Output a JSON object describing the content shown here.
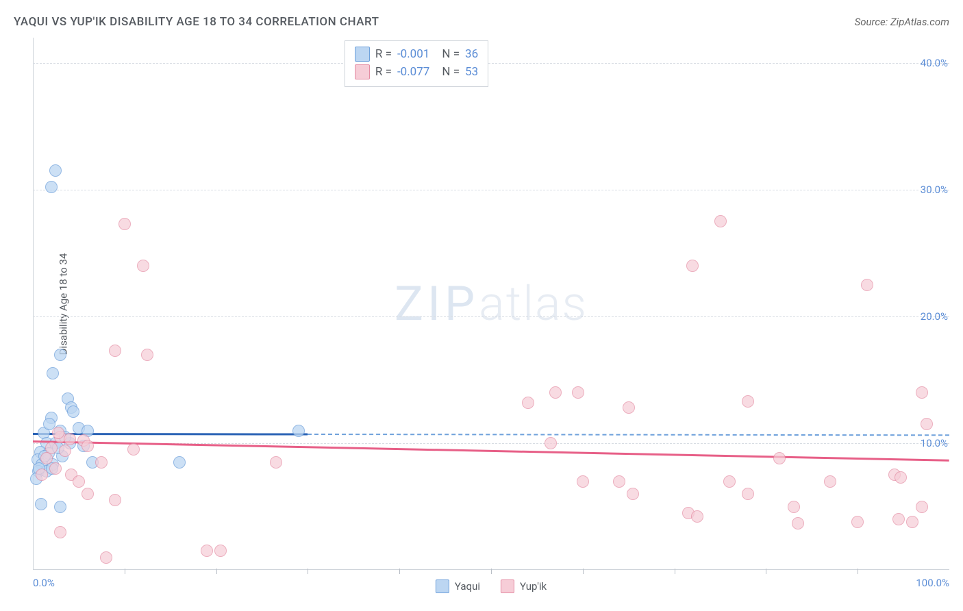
{
  "header": {
    "title": "YAQUI VS YUP'IK DISABILITY AGE 18 TO 34 CORRELATION CHART",
    "source": "Source: ZipAtlas.com"
  },
  "chart": {
    "type": "scatter",
    "ylabel": "Disability Age 18 to 34",
    "watermark_a": "ZIP",
    "watermark_b": "atlas",
    "background_color": "#ffffff",
    "grid_color": "#d8dde3",
    "axis_color": "#cfd4da",
    "tick_label_color": "#5b8dd6",
    "xlim": [
      0,
      100
    ],
    "ylim": [
      0,
      42
    ],
    "yticks": [
      {
        "v": 10,
        "label": "10.0%"
      },
      {
        "v": 20,
        "label": "20.0%"
      },
      {
        "v": 30,
        "label": "30.0%"
      },
      {
        "v": 40,
        "label": "40.0%"
      }
    ],
    "xticks_major": [
      {
        "v": 0,
        "label": "0.0%"
      },
      {
        "v": 100,
        "label": "100.0%"
      }
    ],
    "xticks_minor": [
      10,
      20,
      30,
      40,
      50,
      60,
      70,
      80,
      90
    ],
    "series": [
      {
        "name": "Yaqui",
        "fill": "#bcd6f2",
        "stroke": "#6fa1db",
        "marker_radius": 9,
        "marker_opacity": 0.75,
        "trend_color": "#2b63b5",
        "trend_dash_color": "#6fa1db",
        "trend": {
          "y_at_x0": 10.8,
          "y_at_x100": 10.7,
          "solid_until_x": 30
        },
        "R_label": "R =",
        "R": "-0.001",
        "N_label": "N =",
        "N": "36",
        "points": [
          {
            "x": 2.5,
            "y": 31.5
          },
          {
            "x": 2.0,
            "y": 30.2
          },
          {
            "x": 3.0,
            "y": 17.0
          },
          {
            "x": 2.2,
            "y": 15.5
          },
          {
            "x": 3.8,
            "y": 13.5
          },
          {
            "x": 4.2,
            "y": 12.8
          },
          {
            "x": 4.4,
            "y": 12.5
          },
          {
            "x": 2.0,
            "y": 12.0
          },
          {
            "x": 3.0,
            "y": 11.0
          },
          {
            "x": 5.0,
            "y": 11.2
          },
          {
            "x": 6.0,
            "y": 11.0
          },
          {
            "x": 1.2,
            "y": 10.8
          },
          {
            "x": 1.5,
            "y": 10.0
          },
          {
            "x": 2.5,
            "y": 10.0
          },
          {
            "x": 4.0,
            "y": 10.0
          },
          {
            "x": 0.8,
            "y": 9.3
          },
          {
            "x": 1.7,
            "y": 9.2
          },
          {
            "x": 3.2,
            "y": 9.0
          },
          {
            "x": 0.5,
            "y": 8.7
          },
          {
            "x": 1.0,
            "y": 8.3
          },
          {
            "x": 2.2,
            "y": 8.3
          },
          {
            "x": 6.5,
            "y": 8.5
          },
          {
            "x": 16.0,
            "y": 8.5
          },
          {
            "x": 0.6,
            "y": 7.8
          },
          {
            "x": 1.5,
            "y": 7.8
          },
          {
            "x": 0.4,
            "y": 7.2
          },
          {
            "x": 0.9,
            "y": 5.2
          },
          {
            "x": 3.0,
            "y": 5.0
          },
          {
            "x": 0.7,
            "y": 8.0
          },
          {
            "x": 2.8,
            "y": 9.6
          },
          {
            "x": 1.3,
            "y": 9.0
          },
          {
            "x": 2.1,
            "y": 8.0
          },
          {
            "x": 1.8,
            "y": 11.5
          },
          {
            "x": 3.5,
            "y": 10.5
          },
          {
            "x": 5.5,
            "y": 9.8
          },
          {
            "x": 29.0,
            "y": 11.0
          }
        ]
      },
      {
        "name": "Yup'ik",
        "fill": "#f6cdd7",
        "stroke": "#e48ca3",
        "marker_radius": 9,
        "marker_opacity": 0.7,
        "trend_color": "#e75f87",
        "trend": {
          "y_at_x0": 10.2,
          "y_at_x100": 8.7,
          "solid_until_x": 100
        },
        "R_label": "R =",
        "R": "-0.077",
        "N_label": "N =",
        "N": "53",
        "points": [
          {
            "x": 10.0,
            "y": 27.3
          },
          {
            "x": 12.0,
            "y": 24.0
          },
          {
            "x": 75.0,
            "y": 27.5
          },
          {
            "x": 72.0,
            "y": 24.0
          },
          {
            "x": 91.0,
            "y": 22.5
          },
          {
            "x": 9.0,
            "y": 17.3
          },
          {
            "x": 12.5,
            "y": 17.0
          },
          {
            "x": 57.0,
            "y": 14.0
          },
          {
            "x": 59.5,
            "y": 14.0
          },
          {
            "x": 54.0,
            "y": 13.2
          },
          {
            "x": 65.0,
            "y": 12.8
          },
          {
            "x": 78.0,
            "y": 13.3
          },
          {
            "x": 97.0,
            "y": 14.0
          },
          {
            "x": 97.5,
            "y": 11.5
          },
          {
            "x": 56.5,
            "y": 10.0
          },
          {
            "x": 3.0,
            "y": 10.5
          },
          {
            "x": 4.0,
            "y": 10.3
          },
          {
            "x": 5.5,
            "y": 10.2
          },
          {
            "x": 6.0,
            "y": 9.8
          },
          {
            "x": 2.0,
            "y": 9.6
          },
          {
            "x": 3.5,
            "y": 9.4
          },
          {
            "x": 11.0,
            "y": 9.5
          },
          {
            "x": 7.5,
            "y": 8.5
          },
          {
            "x": 26.5,
            "y": 8.5
          },
          {
            "x": 2.5,
            "y": 8.0
          },
          {
            "x": 4.2,
            "y": 7.5
          },
          {
            "x": 60.0,
            "y": 7.0
          },
          {
            "x": 64.0,
            "y": 7.0
          },
          {
            "x": 81.5,
            "y": 8.8
          },
          {
            "x": 94.0,
            "y": 7.5
          },
          {
            "x": 94.7,
            "y": 7.3
          },
          {
            "x": 94.5,
            "y": 4.0
          },
          {
            "x": 90.0,
            "y": 3.8
          },
          {
            "x": 76.0,
            "y": 7.0
          },
          {
            "x": 78.0,
            "y": 6.0
          },
          {
            "x": 71.5,
            "y": 4.5
          },
          {
            "x": 72.5,
            "y": 4.2
          },
          {
            "x": 83.0,
            "y": 5.0
          },
          {
            "x": 83.5,
            "y": 3.7
          },
          {
            "x": 87.0,
            "y": 7.0
          },
          {
            "x": 97.0,
            "y": 5.0
          },
          {
            "x": 96.0,
            "y": 3.8
          },
          {
            "x": 65.5,
            "y": 6.0
          },
          {
            "x": 3.0,
            "y": 3.0
          },
          {
            "x": 8.0,
            "y": 1.0
          },
          {
            "x": 19.0,
            "y": 1.5
          },
          {
            "x": 20.5,
            "y": 1.5
          },
          {
            "x": 2.8,
            "y": 10.8
          },
          {
            "x": 1.5,
            "y": 8.8
          },
          {
            "x": 1.0,
            "y": 7.5
          },
          {
            "x": 5.0,
            "y": 7.0
          },
          {
            "x": 6.0,
            "y": 6.0
          },
          {
            "x": 9.0,
            "y": 5.5
          }
        ]
      }
    ],
    "legend_bottom": [
      {
        "label": "Yaqui",
        "fill": "#bcd6f2",
        "stroke": "#6fa1db"
      },
      {
        "label": "Yup'ik",
        "fill": "#f6cdd7",
        "stroke": "#e48ca3"
      }
    ]
  }
}
